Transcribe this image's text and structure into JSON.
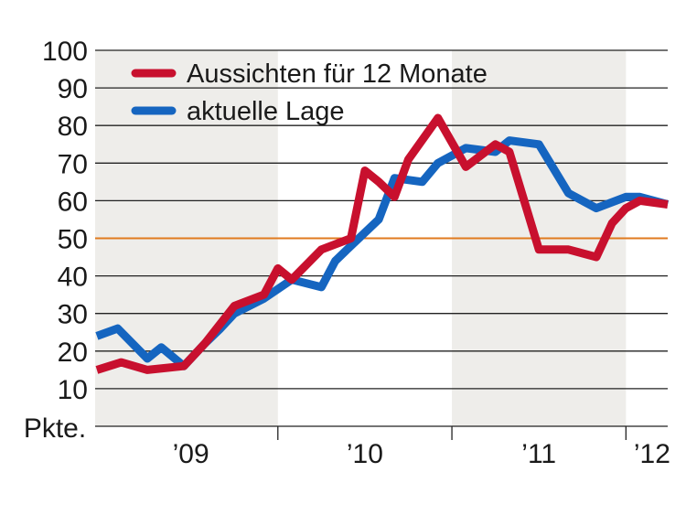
{
  "chart_data": {
    "type": "line",
    "title": "",
    "xlabel": "",
    "ylabel": "Pkte.",
    "ylim": [
      0,
      100
    ],
    "yticks": [
      10,
      20,
      30,
      40,
      50,
      60,
      70,
      80,
      90,
      100
    ],
    "xlim": [
      2008.95,
      2012.24
    ],
    "year_labels": [
      {
        "label": "’09",
        "x": 2009.5
      },
      {
        "label": "’10",
        "x": 2010.5
      },
      {
        "label": "’11",
        "x": 2011.5
      },
      {
        "label": "’12",
        "x": 2012.15
      }
    ],
    "year_dividers": [
      2010.0,
      2011.0,
      2012.0
    ],
    "shaded_years": [
      [
        2008.95,
        2010.0
      ],
      [
        2011.0,
        2012.0
      ]
    ],
    "reference_line": {
      "y": 50,
      "color": "#e07a1f"
    },
    "legend_position": "top-left",
    "grid": true,
    "series": [
      {
        "name": "Aussichten für 12 Monate",
        "color": "#c8102e",
        "points": [
          [
            2008.96,
            15
          ],
          [
            2009.1,
            17
          ],
          [
            2009.25,
            15
          ],
          [
            2009.46,
            16
          ],
          [
            2009.58,
            22
          ],
          [
            2009.75,
            32
          ],
          [
            2009.92,
            35
          ],
          [
            2010.0,
            42
          ],
          [
            2010.08,
            39
          ],
          [
            2010.25,
            47
          ],
          [
            2010.42,
            50
          ],
          [
            2010.5,
            68
          ],
          [
            2010.58,
            65
          ],
          [
            2010.67,
            61
          ],
          [
            2010.75,
            71
          ],
          [
            2010.92,
            82
          ],
          [
            2011.08,
            69
          ],
          [
            2011.25,
            75
          ],
          [
            2011.33,
            73
          ],
          [
            2011.5,
            47
          ],
          [
            2011.67,
            47
          ],
          [
            2011.83,
            45
          ],
          [
            2011.92,
            54
          ],
          [
            2012.0,
            58
          ],
          [
            2012.08,
            60
          ],
          [
            2012.24,
            59
          ]
        ]
      },
      {
        "name": "aktuelle Lage",
        "color": "#1565c0",
        "points": [
          [
            2008.96,
            24
          ],
          [
            2009.08,
            26
          ],
          [
            2009.25,
            18
          ],
          [
            2009.33,
            21
          ],
          [
            2009.46,
            16
          ],
          [
            2009.58,
            22
          ],
          [
            2009.67,
            26
          ],
          [
            2009.75,
            30
          ],
          [
            2009.92,
            34
          ],
          [
            2010.08,
            39
          ],
          [
            2010.25,
            37
          ],
          [
            2010.33,
            44
          ],
          [
            2010.42,
            48
          ],
          [
            2010.58,
            55
          ],
          [
            2010.67,
            66
          ],
          [
            2010.83,
            65
          ],
          [
            2010.92,
            70
          ],
          [
            2011.08,
            74
          ],
          [
            2011.25,
            73
          ],
          [
            2011.33,
            76
          ],
          [
            2011.5,
            75
          ],
          [
            2011.67,
            62
          ],
          [
            2011.83,
            58
          ],
          [
            2012.0,
            61
          ],
          [
            2012.08,
            61
          ],
          [
            2012.24,
            59
          ]
        ]
      }
    ]
  }
}
